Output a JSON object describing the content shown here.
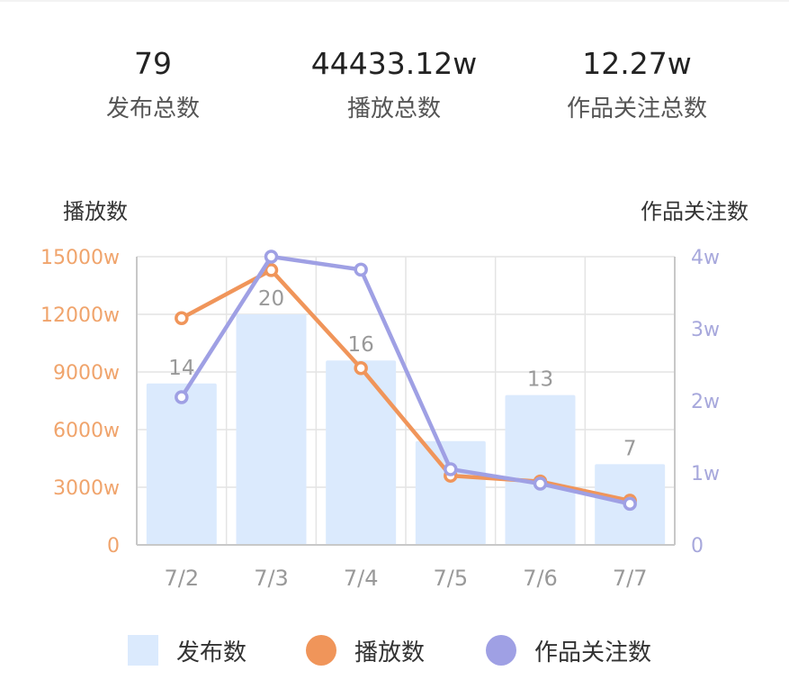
{
  "summary": [
    {
      "value": "79",
      "label": "发布总数"
    },
    {
      "value": "44433.12w",
      "label": "播放总数"
    },
    {
      "value": "12.27w",
      "label": "作品关注总数"
    }
  ],
  "colors": {
    "bar": "#dbeafd",
    "play": "#f0955a",
    "follow": "#9fa0e4",
    "left_axis": "#f0a46c",
    "right_axis": "#a7a8dc",
    "grid": "#e4e4e4"
  },
  "chart_data": {
    "type": "bar",
    "categories": [
      "7/2",
      "7/3",
      "7/4",
      "7/5",
      "7/6",
      "7/7"
    ],
    "series": [
      {
        "name": "发布数",
        "type": "bar",
        "axis": "count",
        "values": [
          14,
          20,
          16,
          9,
          13,
          7
        ],
        "data_labels": [
          "14",
          "20",
          "16",
          "",
          "13",
          "7"
        ]
      },
      {
        "name": "播放数",
        "type": "line",
        "axis": "left",
        "values": [
          11800,
          14300,
          9200,
          3600,
          3300,
          2300
        ]
      },
      {
        "name": "作品关注数",
        "type": "line",
        "axis": "right",
        "values": [
          2.05,
          4.0,
          3.82,
          1.05,
          0.85,
          0.57
        ]
      }
    ],
    "left_axis": {
      "title": "播放数",
      "ticks": [
        "0",
        "3000w",
        "6000w",
        "9000w",
        "12000w",
        "15000w"
      ],
      "ylim": [
        0,
        15000
      ]
    },
    "right_axis": {
      "title": "作品关注数",
      "ticks": [
        "0",
        "1w",
        "2w",
        "3w",
        "4w"
      ],
      "ylim": [
        0,
        4
      ]
    },
    "count_axis": {
      "ylim": [
        0,
        25
      ]
    },
    "grid": true,
    "legend_position": "bottom"
  }
}
